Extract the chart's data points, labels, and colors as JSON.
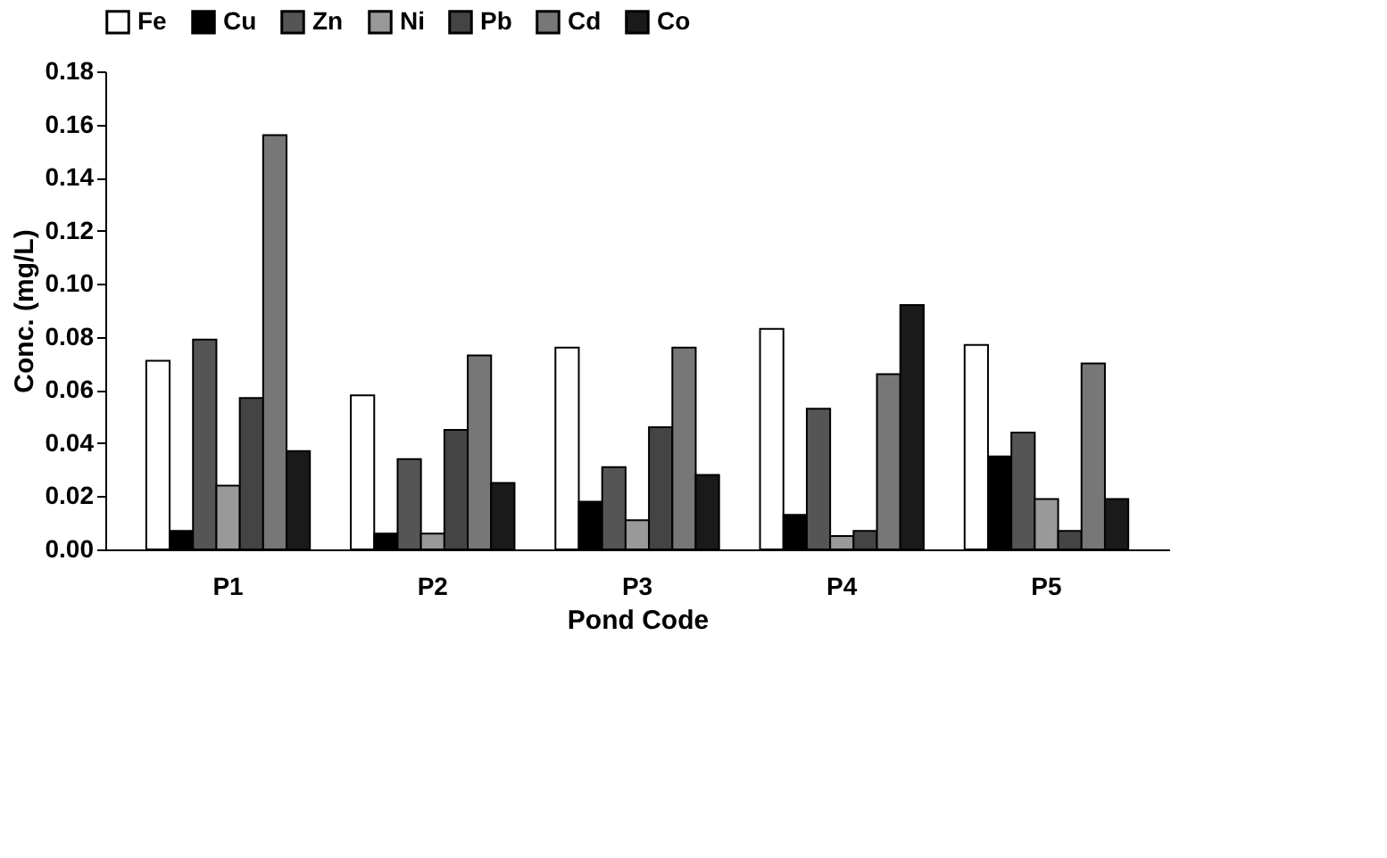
{
  "chart_data": {
    "type": "bar",
    "xlabel": "Pond Code",
    "ylabel": "Conc. (mg/L)",
    "categories": [
      "P1",
      "P2",
      "P3",
      "P4",
      "P5"
    ],
    "series": [
      {
        "name": "Fe",
        "color": "#ffffff",
        "values": [
          0.071,
          0.058,
          0.076,
          0.083,
          0.077
        ]
      },
      {
        "name": "Cu",
        "color": "#000000",
        "values": [
          0.007,
          0.006,
          0.018,
          0.013,
          0.035
        ]
      },
      {
        "name": "Zn",
        "color": "#555555",
        "values": [
          0.079,
          0.034,
          0.031,
          0.053,
          0.044
        ]
      },
      {
        "name": "Ni",
        "color": "#999999",
        "values": [
          0.024,
          0.006,
          0.011,
          0.005,
          0.019
        ]
      },
      {
        "name": "Pb",
        "color": "#444444",
        "values": [
          0.057,
          0.045,
          0.046,
          0.007,
          0.007
        ]
      },
      {
        "name": "Cd",
        "color": "#777777",
        "values": [
          0.156,
          0.073,
          0.076,
          0.066,
          0.07
        ]
      },
      {
        "name": "Co",
        "color": "#1a1a1a",
        "values": [
          0.037,
          0.025,
          0.028,
          0.092,
          0.019
        ]
      }
    ],
    "ylim": [
      0,
      0.18
    ],
    "yticks": [
      {
        "value": 0,
        "label": "0.00"
      },
      {
        "value": 0.02,
        "label": "0.02"
      },
      {
        "value": 0.04,
        "label": "0.04"
      },
      {
        "value": 0.06,
        "label": "0.06"
      },
      {
        "value": 0.08,
        "label": "0.08"
      },
      {
        "value": 0.1,
        "label": "0.10"
      },
      {
        "value": 0.12,
        "label": "0.12"
      },
      {
        "value": 0.14,
        "label": "0.14"
      },
      {
        "value": 0.16,
        "label": "0.16"
      },
      {
        "value": 0.18,
        "label": "0.18"
      }
    ],
    "legend": "top",
    "grid": false
  }
}
